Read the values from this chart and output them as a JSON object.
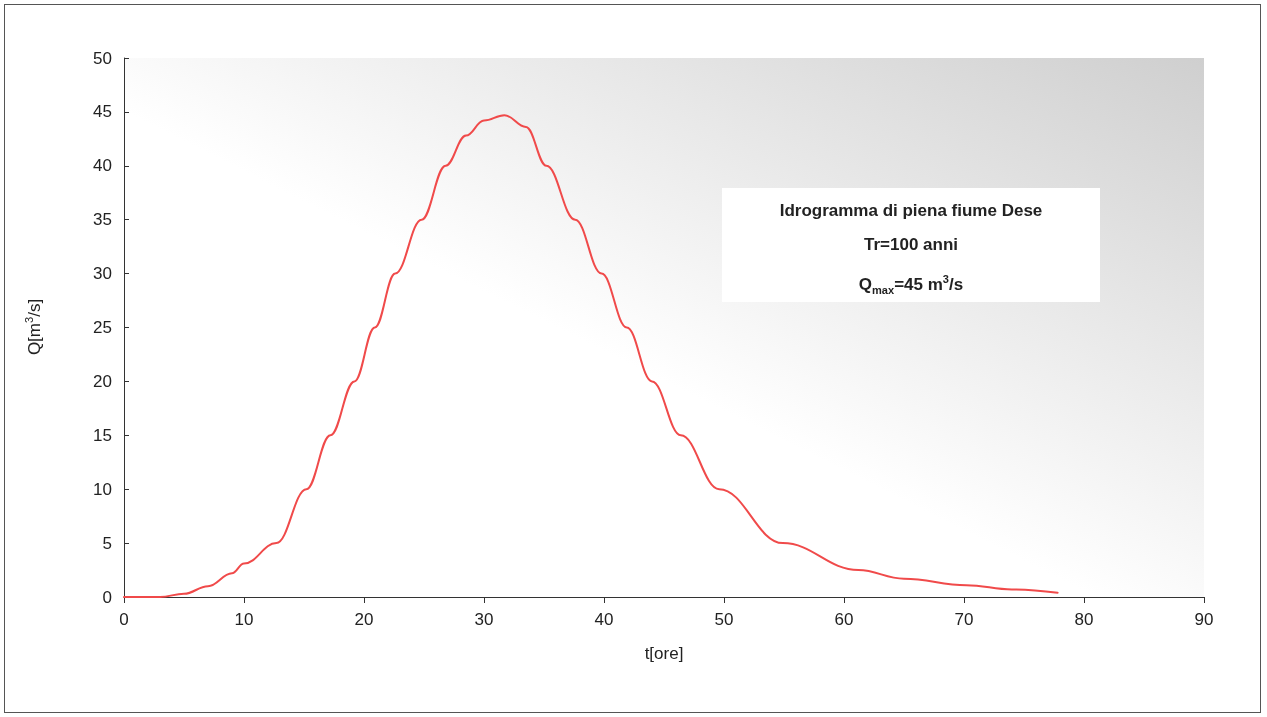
{
  "chart_data": {
    "type": "line",
    "title": "Idrogramma di piena fiume Dese",
    "annotations": [
      "Tr=100 anni",
      "Q$_{max}$=45 m$^{3}$/s"
    ],
    "xlabel": "t[ore]",
    "ylabel": "Q[m$^{3}$/s]",
    "x": [
      0,
      3,
      5,
      7,
      9,
      10,
      12.7,
      15.2,
      17.2,
      19.2,
      20.9,
      22.6,
      24.8,
      26.8,
      28.5,
      30,
      31.7,
      33.5,
      35.2,
      37.6,
      39.8,
      41.9,
      44,
      46.4,
      49.6,
      54.9,
      61.2,
      65,
      70.2,
      74,
      77.8
    ],
    "series": [
      {
        "color": "#f04a4a",
        "values": [
          0,
          0,
          0.3,
          1.0,
          2.2,
          3.1,
          5,
          10,
          15,
          20,
          25,
          30,
          35,
          40,
          42.8,
          44.2,
          44.7,
          43.6,
          40,
          35,
          30,
          25,
          20,
          15,
          10,
          5,
          2.5,
          1.7,
          1.1,
          0.7,
          0.4
        ]
      }
    ],
    "xlim": [
      0,
      90
    ],
    "xticks": [
      0,
      10,
      20,
      30,
      40,
      50,
      60,
      70,
      80,
      90
    ],
    "ylim": [
      0,
      50
    ],
    "yticks": [
      0,
      5,
      10,
      15,
      20,
      25,
      30,
      35,
      40,
      45,
      50
    ],
    "grid": false,
    "marker": "none",
    "line_style": "solid"
  }
}
